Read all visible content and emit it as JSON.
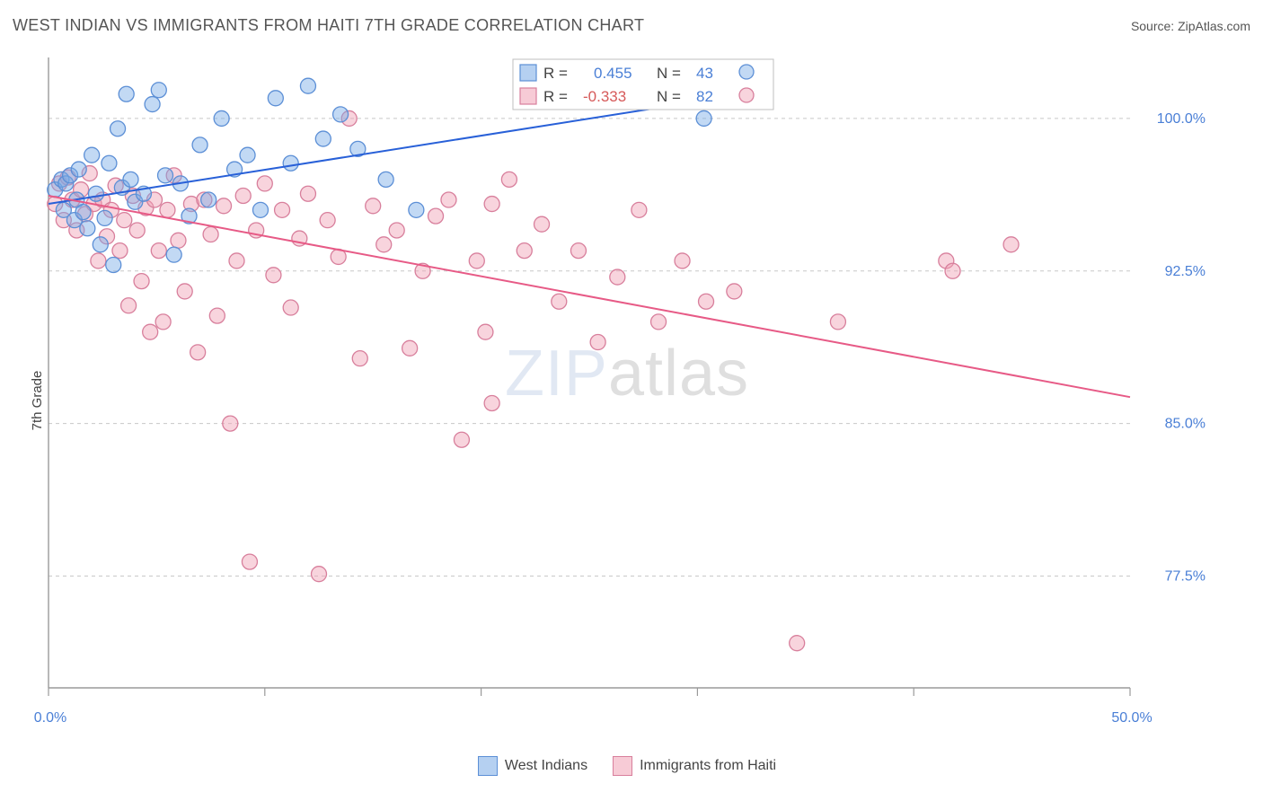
{
  "title": "WEST INDIAN VS IMMIGRANTS FROM HAITI 7TH GRADE CORRELATION CHART",
  "source_label": "Source: ",
  "source_value": "ZipAtlas.com",
  "y_axis_label": "7th Grade",
  "watermark_a": "ZIP",
  "watermark_b": "atlas",
  "chart": {
    "type": "scatter",
    "xlim": [
      0,
      50
    ],
    "ylim": [
      72,
      103
    ],
    "x_ticks": [
      0,
      10,
      20,
      30,
      40,
      50
    ],
    "x_tick_labels": [
      "0.0%",
      "",
      "",
      "",
      "",
      "50.0%"
    ],
    "x_inner_ticks_count": 5,
    "y_grid": [
      77.5,
      85.0,
      92.5,
      100.0
    ],
    "y_tick_labels": [
      "77.5%",
      "85.0%",
      "92.5%",
      "100.0%"
    ],
    "background_color": "#ffffff",
    "grid_color": "#c8c8c8",
    "axis_color": "#9a9a9a",
    "tick_label_color": "#4a7fd6",
    "marker_radius": 8.5,
    "series": [
      {
        "name": "West Indians",
        "color_fill": "rgba(120,170,230,0.45)",
        "color_stroke": "#5c8fd6",
        "trend_color": "#2860d8",
        "trend": {
          "x1": 0,
          "y1": 95.8,
          "x2": 31,
          "y2": 101.0
        },
        "R": "0.455",
        "N": "43",
        "points": [
          [
            0.3,
            96.5
          ],
          [
            0.6,
            97.0
          ],
          [
            0.7,
            95.5
          ],
          [
            0.8,
            96.8
          ],
          [
            1.0,
            97.2
          ],
          [
            1.2,
            95.0
          ],
          [
            1.3,
            96.0
          ],
          [
            1.4,
            97.5
          ],
          [
            1.6,
            95.4
          ],
          [
            1.8,
            94.6
          ],
          [
            2.0,
            98.2
          ],
          [
            2.2,
            96.3
          ],
          [
            2.4,
            93.8
          ],
          [
            2.6,
            95.1
          ],
          [
            2.8,
            97.8
          ],
          [
            3.0,
            92.8
          ],
          [
            3.2,
            99.5
          ],
          [
            3.4,
            96.6
          ],
          [
            3.6,
            101.2
          ],
          [
            3.8,
            97.0
          ],
          [
            4.0,
            95.9
          ],
          [
            4.4,
            96.3
          ],
          [
            4.8,
            100.7
          ],
          [
            5.1,
            101.4
          ],
          [
            5.4,
            97.2
          ],
          [
            5.8,
            93.3
          ],
          [
            6.1,
            96.8
          ],
          [
            6.5,
            95.2
          ],
          [
            7.0,
            98.7
          ],
          [
            7.4,
            96.0
          ],
          [
            8.0,
            100.0
          ],
          [
            8.6,
            97.5
          ],
          [
            9.2,
            98.2
          ],
          [
            9.8,
            95.5
          ],
          [
            10.5,
            101.0
          ],
          [
            11.2,
            97.8
          ],
          [
            12.0,
            101.6
          ],
          [
            12.7,
            99.0
          ],
          [
            13.5,
            100.2
          ],
          [
            14.3,
            98.5
          ],
          [
            15.6,
            97.0
          ],
          [
            17.0,
            95.5
          ],
          [
            30.3,
            100.0
          ]
        ]
      },
      {
        "name": "Immigrants from Haiti",
        "color_fill": "rgba(240,160,180,0.45)",
        "color_stroke": "#d87f9c",
        "trend_color": "#e75a86",
        "trend": {
          "x1": 0,
          "y1": 96.2,
          "x2": 50,
          "y2": 86.3
        },
        "R": "-0.333",
        "N": "82",
        "points": [
          [
            0.3,
            95.8
          ],
          [
            0.5,
            96.8
          ],
          [
            0.7,
            95.0
          ],
          [
            0.9,
            97.1
          ],
          [
            1.1,
            96.0
          ],
          [
            1.3,
            94.5
          ],
          [
            1.5,
            96.5
          ],
          [
            1.7,
            95.3
          ],
          [
            1.9,
            97.3
          ],
          [
            2.1,
            95.8
          ],
          [
            2.3,
            93.0
          ],
          [
            2.5,
            96.0
          ],
          [
            2.7,
            94.2
          ],
          [
            2.9,
            95.5
          ],
          [
            3.1,
            96.7
          ],
          [
            3.3,
            93.5
          ],
          [
            3.5,
            95.0
          ],
          [
            3.7,
            90.8
          ],
          [
            3.9,
            96.2
          ],
          [
            4.1,
            94.5
          ],
          [
            4.3,
            92.0
          ],
          [
            4.5,
            95.6
          ],
          [
            4.7,
            89.5
          ],
          [
            4.9,
            96.0
          ],
          [
            5.1,
            93.5
          ],
          [
            5.3,
            90.0
          ],
          [
            5.5,
            95.5
          ],
          [
            5.8,
            97.2
          ],
          [
            6.0,
            94.0
          ],
          [
            6.3,
            91.5
          ],
          [
            6.6,
            95.8
          ],
          [
            6.9,
            88.5
          ],
          [
            7.2,
            96.0
          ],
          [
            7.5,
            94.3
          ],
          [
            7.8,
            90.3
          ],
          [
            8.1,
            95.7
          ],
          [
            8.4,
            85.0
          ],
          [
            8.7,
            93.0
          ],
          [
            9.0,
            96.2
          ],
          [
            9.3,
            78.2
          ],
          [
            9.6,
            94.5
          ],
          [
            10.0,
            96.8
          ],
          [
            10.4,
            92.3
          ],
          [
            10.8,
            95.5
          ],
          [
            11.2,
            90.7
          ],
          [
            11.6,
            94.1
          ],
          [
            12.0,
            96.3
          ],
          [
            12.5,
            77.6
          ],
          [
            12.9,
            95.0
          ],
          [
            13.4,
            93.2
          ],
          [
            13.9,
            100.0
          ],
          [
            14.4,
            88.2
          ],
          [
            15.0,
            95.7
          ],
          [
            15.5,
            93.8
          ],
          [
            16.1,
            94.5
          ],
          [
            16.7,
            88.7
          ],
          [
            17.3,
            92.5
          ],
          [
            17.9,
            95.2
          ],
          [
            18.5,
            96.0
          ],
          [
            19.1,
            84.2
          ],
          [
            19.8,
            93.0
          ],
          [
            20.2,
            89.5
          ],
          [
            20.5,
            95.8
          ],
          [
            20.5,
            86.0
          ],
          [
            21.3,
            97.0
          ],
          [
            22.0,
            93.5
          ],
          [
            22.8,
            94.8
          ],
          [
            23.6,
            91.0
          ],
          [
            24.5,
            93.5
          ],
          [
            25.4,
            89.0
          ],
          [
            26.3,
            92.2
          ],
          [
            27.3,
            95.5
          ],
          [
            28.2,
            90.0
          ],
          [
            29.3,
            93.0
          ],
          [
            30.4,
            91.0
          ],
          [
            31.7,
            91.5
          ],
          [
            33.0,
            101.2
          ],
          [
            34.6,
            74.2
          ],
          [
            36.5,
            90.0
          ],
          [
            41.5,
            93.0
          ],
          [
            41.8,
            92.5
          ],
          [
            44.5,
            93.8
          ]
        ]
      }
    ],
    "legend": {
      "items": [
        "West Indians",
        "Immigrants from Haiti"
      ]
    },
    "correlation_box": {
      "r_label": "R =",
      "n_label": "N ="
    }
  }
}
